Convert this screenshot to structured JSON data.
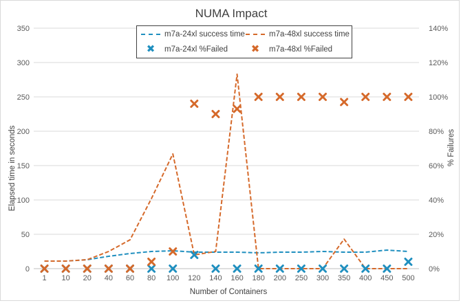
{
  "chart_data": {
    "type": "line",
    "title": "NUMA Impact",
    "xlabel": "Number of Containers",
    "ylabel": "Elapsed time in seconds",
    "y2label": "% Failures",
    "categories": [
      "1",
      "10",
      "20",
      "40",
      "60",
      "80",
      "100",
      "120",
      "140",
      "160",
      "180",
      "200",
      "250",
      "300",
      "350",
      "400",
      "450",
      "500"
    ],
    "ylim": [
      0,
      350
    ],
    "yticks": [
      "0",
      "50",
      "100",
      "150",
      "200",
      "250",
      "300",
      "350"
    ],
    "y2lim": [
      0,
      140
    ],
    "y2ticks": [
      "0%",
      "20%",
      "40%",
      "60%",
      "80%",
      "100%",
      "120%",
      "140%"
    ],
    "grid": true,
    "legend_position": "top",
    "series": [
      {
        "name": "m7a-24xl success time",
        "axis": "primary",
        "kind": "dashed-line",
        "color": "#1f8fbf",
        "values": [
          11,
          11,
          13,
          18,
          22,
          25,
          26,
          24,
          24,
          24,
          23,
          24,
          24,
          25,
          24,
          24,
          27,
          25
        ]
      },
      {
        "name": "m7a-48xl success time",
        "axis": "primary",
        "kind": "dashed-line",
        "color": "#d5692a",
        "values": [
          11,
          11,
          13,
          25,
          42,
          102,
          167,
          20,
          25,
          283,
          0,
          0,
          0,
          0,
          43,
          0,
          0,
          0
        ]
      },
      {
        "name": "m7a-24xl %Failed",
        "axis": "secondary",
        "kind": "marker-x",
        "color": "#1f8fbf",
        "values": [
          0,
          0,
          0,
          0,
          0,
          0,
          0,
          8,
          0,
          0,
          0,
          0,
          0,
          0,
          0,
          0,
          0,
          4
        ]
      },
      {
        "name": "m7a-48xl %Failed",
        "axis": "secondary",
        "kind": "marker-x",
        "color": "#d5692a",
        "values": [
          0,
          0,
          0,
          0,
          0,
          4,
          10,
          96,
          90,
          93,
          100,
          100,
          100,
          100,
          97,
          100,
          100,
          100
        ]
      }
    ]
  }
}
